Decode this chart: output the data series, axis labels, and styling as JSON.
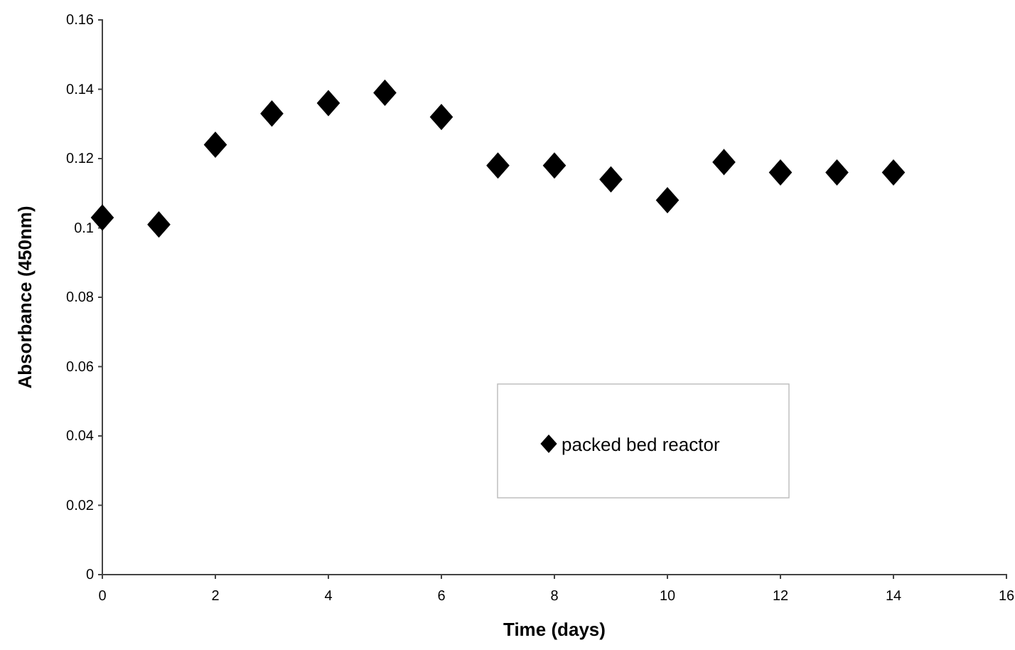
{
  "chart_data": {
    "type": "scatter",
    "xlabel": "Time (days)",
    "ylabel": "Absorbance (450nm)",
    "x": [
      0,
      1,
      2,
      3,
      4,
      5,
      6,
      7,
      8,
      9,
      10,
      11,
      12,
      13,
      14
    ],
    "series": [
      {
        "name": "packed bed reactor",
        "color": "#000000",
        "values": [
          0.103,
          0.101,
          0.124,
          0.133,
          0.136,
          0.139,
          0.132,
          0.118,
          0.118,
          0.114,
          0.108,
          0.119,
          0.116,
          0.116,
          0.116
        ]
      }
    ],
    "xlim": [
      0,
      16
    ],
    "xticks": [
      0,
      2,
      4,
      6,
      8,
      10,
      12,
      14,
      16
    ],
    "ylim": [
      0,
      0.16
    ],
    "yticks": [
      0,
      0.02,
      0.04,
      0.06,
      0.08,
      0.1,
      0.12,
      0.14,
      0.16
    ],
    "marker": "diamond",
    "legend": "bottom right",
    "grid": false
  }
}
